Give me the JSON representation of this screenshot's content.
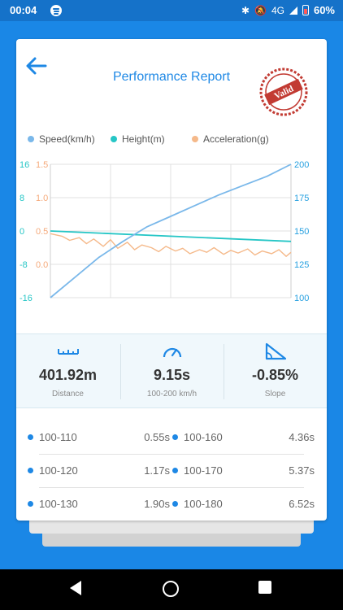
{
  "status_bar": {
    "time": "00:04",
    "network": "4G",
    "battery": "60%",
    "icons": [
      "spotify-icon",
      "bluetooth-icon",
      "mute-icon",
      "signal-icon",
      "battery-icon"
    ]
  },
  "header": {
    "title": "Performance Report",
    "stamp_text": "Valid"
  },
  "chart_data": {
    "type": "line",
    "series": [
      {
        "name": "Speed(km/h)",
        "color": "#7ab8ea",
        "axis": "right",
        "x": [
          0,
          10,
          20,
          30,
          40,
          50,
          60,
          70,
          80,
          90,
          100
        ],
        "values": [
          100,
          115,
          130,
          142,
          153,
          161,
          169,
          177,
          184,
          191,
          200
        ]
      },
      {
        "name": "Height(m)",
        "color": "#26c6c6",
        "axis": "left",
        "x": [
          0,
          100
        ],
        "values": [
          0,
          -2.5
        ]
      },
      {
        "name": "Acceleration(g)",
        "color": "#f5b98a",
        "axis": "left2",
        "x": [
          0,
          5,
          8,
          12,
          15,
          18,
          22,
          25,
          28,
          32,
          35,
          38,
          42,
          45,
          48,
          52,
          55,
          58,
          62,
          65,
          68,
          72,
          75,
          78,
          82,
          85,
          88,
          92,
          95,
          98,
          100
        ],
        "values": [
          0.46,
          0.42,
          0.36,
          0.4,
          0.31,
          0.38,
          0.27,
          0.37,
          0.24,
          0.33,
          0.22,
          0.29,
          0.25,
          0.19,
          0.27,
          0.2,
          0.24,
          0.16,
          0.22,
          0.18,
          0.25,
          0.15,
          0.21,
          0.17,
          0.23,
          0.14,
          0.2,
          0.16,
          0.22,
          0.12,
          0.18
        ]
      }
    ],
    "axes": {
      "left": {
        "ticks": [
          "16",
          "8",
          "0",
          "-8",
          "-16"
        ],
        "range": [
          -16,
          16
        ],
        "color": "#26c6c6"
      },
      "left2": {
        "ticks": [
          "1.5",
          "1.0",
          "0.5",
          "0.0"
        ],
        "range": [
          -0.5,
          1.5
        ],
        "color": "#f5a97a"
      },
      "right": {
        "ticks": [
          "200",
          "175",
          "150",
          "125",
          "100"
        ],
        "range": [
          100,
          200
        ],
        "color": "#26a0e0"
      }
    },
    "grid": true,
    "legend_position": "top-left"
  },
  "stats": [
    {
      "value": "401.92m",
      "label": "Distance",
      "icon": "ruler-icon"
    },
    {
      "value": "9.15s",
      "label": "100-200 km/h",
      "icon": "speedometer-icon"
    },
    {
      "value": "-0.85%",
      "label": "Slope",
      "icon": "slope-icon"
    }
  ],
  "splits": [
    {
      "range": "100-110",
      "time": "0.55s"
    },
    {
      "range": "100-160",
      "time": "4.36s"
    },
    {
      "range": "100-120",
      "time": "1.17s"
    },
    {
      "range": "100-170",
      "time": "5.37s"
    },
    {
      "range": "100-130",
      "time": "1.90s"
    },
    {
      "range": "100-180",
      "time": "6.52s"
    }
  ]
}
